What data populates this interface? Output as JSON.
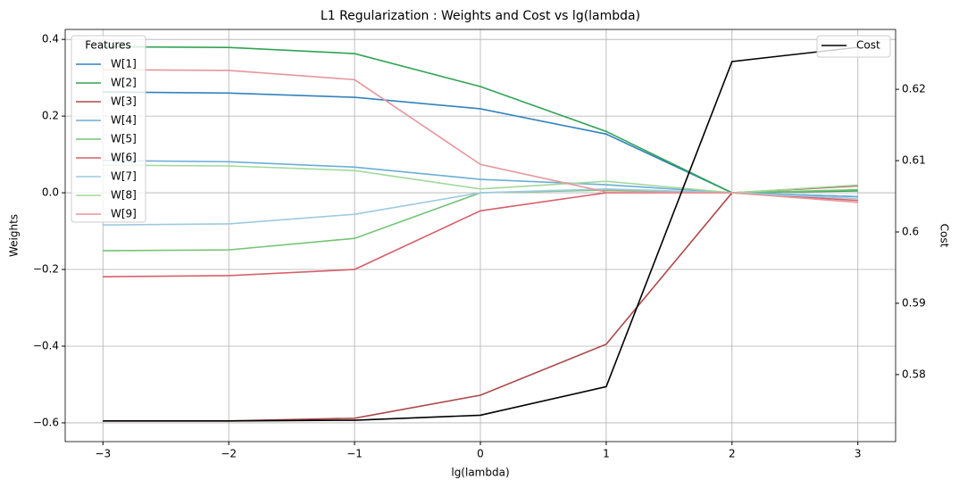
{
  "chart_data": {
    "type": "line",
    "title": "L1 Regularization : Weights and Cost vs lg(lambda)",
    "x_label": "lg(lambda)",
    "y_label": "Weights",
    "y2_label": "Cost",
    "legend_title": "Features",
    "x": [
      -3,
      -2,
      -1,
      0,
      1,
      2,
      3
    ],
    "xlim": [
      -3.3,
      3.3
    ],
    "xticks": [
      {
        "value": -3,
        "label": "−3"
      },
      {
        "value": -2,
        "label": "−2"
      },
      {
        "value": -1,
        "label": "−1"
      },
      0,
      1,
      2,
      3
    ],
    "ylim": [
      -0.649,
      0.426
    ],
    "yticks": [
      {
        "value": -0.6,
        "label": "−0.6"
      },
      {
        "value": -0.4,
        "label": "−0.4"
      },
      {
        "value": -0.2,
        "label": "−0.2"
      },
      {
        "value": 0,
        "label": "0.0"
      },
      0.2,
      0.4
    ],
    "y2lim": [
      0.5706,
      0.6284
    ],
    "y2ticks": [
      0.58,
      0.59,
      0.6,
      0.61,
      0.62
    ],
    "grid": true,
    "series": [
      {
        "name": "W[1]",
        "color": "#3182bd",
        "values": [
          0.263,
          0.26,
          0.249,
          0.219,
          0.153,
          0,
          -0.01
        ]
      },
      {
        "name": "W[2]",
        "color": "#31a354",
        "values": [
          0.381,
          0.379,
          0.363,
          0.277,
          0.16,
          0,
          0.005
        ]
      },
      {
        "name": "W[3]",
        "color": "#ad494a",
        "values": [
          -0.595,
          -0.595,
          -0.588,
          -0.528,
          -0.395,
          0,
          0.018
        ]
      },
      {
        "name": "W[4]",
        "color": "#6baed6",
        "values": [
          0.084,
          0.081,
          0.067,
          0.035,
          0.021,
          0,
          -0.01
        ]
      },
      {
        "name": "W[5]",
        "color": "#74c476",
        "values": [
          -0.151,
          -0.149,
          -0.119,
          0,
          0.007,
          0,
          0.008
        ]
      },
      {
        "name": "W[6]",
        "color": "#d6616b",
        "values": [
          -0.219,
          -0.216,
          -0.2,
          -0.047,
          0,
          0,
          -0.02
        ]
      },
      {
        "name": "W[7]",
        "color": "#9ecae1",
        "values": [
          -0.084,
          -0.081,
          -0.056,
          0,
          0.01,
          0,
          -0.015
        ]
      },
      {
        "name": "W[8]",
        "color": "#a1d99b",
        "values": [
          0.072,
          0.07,
          0.058,
          0.01,
          0.03,
          0,
          0.02
        ]
      },
      {
        "name": "W[9]",
        "color": "#e7969c",
        "values": [
          0.321,
          0.319,
          0.295,
          0.074,
          0.002,
          0,
          -0.025
        ]
      },
      {
        "name": "Cost",
        "color": "#000000",
        "axis": "y2",
        "values": [
          0.5735,
          0.5735,
          0.5736,
          0.5743,
          0.5783,
          0.6239,
          0.6259
        ]
      }
    ]
  }
}
